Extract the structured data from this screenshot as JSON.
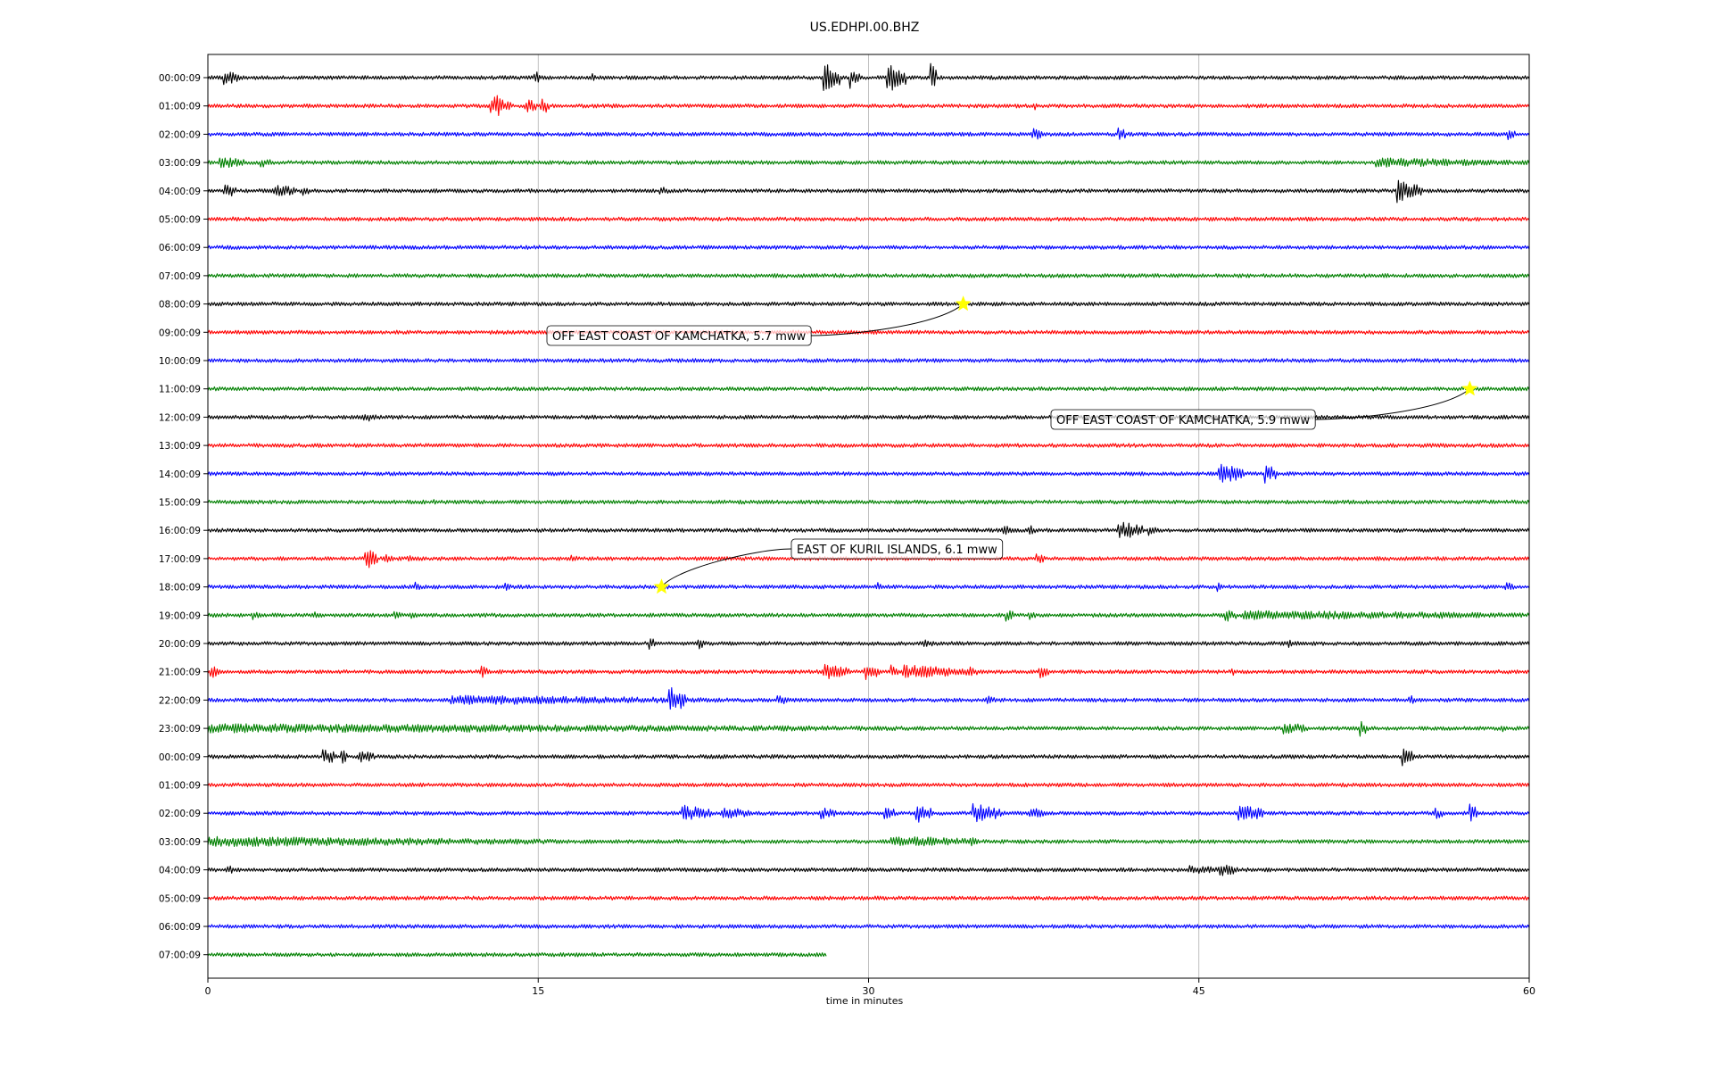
{
  "chart_data": {
    "type": "line",
    "title": "US.EDHPI.00.BHZ",
    "xlabel": "time in minutes",
    "ylabel": "",
    "xlim": [
      0,
      60
    ],
    "x_ticks": [
      "0",
      "15",
      "30",
      "45",
      "60"
    ],
    "x_tick_values": [
      0,
      15,
      30,
      45,
      60
    ],
    "grid": "vertical at major x ticks",
    "trace_colors": [
      "#000000",
      "#ff0000",
      "#0000ff",
      "#008000"
    ],
    "rows": [
      {
        "label": "00:00:09",
        "end": 60,
        "bursts": [
          [
            0.7,
            2,
            0.8
          ],
          [
            14.8,
            2,
            0.3
          ],
          [
            17.4,
            1.2,
            0.2
          ],
          [
            27.9,
            4,
            0.8
          ],
          [
            29.1,
            3,
            0.5
          ],
          [
            30.8,
            4,
            0.9
          ],
          [
            32.8,
            4,
            0.3
          ]
        ]
      },
      {
        "label": "01:00:09",
        "end": 60,
        "bursts": [
          [
            12.8,
            2,
            1.0
          ],
          [
            13.0,
            3.5,
            0.4
          ],
          [
            14.4,
            2,
            0.6
          ],
          [
            15.1,
            2.5,
            0.4
          ],
          [
            37.5,
            1.2,
            0.2
          ]
        ]
      },
      {
        "label": "02:00:09",
        "end": 60,
        "bursts": [
          [
            37.4,
            1.8,
            0.5
          ],
          [
            41.3,
            2,
            0.4
          ],
          [
            59.0,
            1.5,
            0.4
          ]
        ]
      },
      {
        "label": "03:00:09",
        "end": 60,
        "bursts": [
          [
            0.5,
            1.6,
            1.2
          ],
          [
            2.4,
            1.4,
            0.5
          ],
          [
            53.0,
            1.2,
            7.0
          ]
        ]
      },
      {
        "label": "04:00:09",
        "end": 60,
        "bursts": [
          [
            0.7,
            2,
            0.6
          ],
          [
            3.0,
            1.8,
            1.0
          ],
          [
            4.3,
            1.3,
            0.4
          ],
          [
            20.5,
            1.3,
            0.4
          ],
          [
            54.0,
            3,
            1.2
          ]
        ]
      },
      {
        "label": "05:00:09",
        "end": 60,
        "bursts": [
          [
            1.1,
            1.1,
            0.2
          ]
        ]
      },
      {
        "label": "06:00:09",
        "end": 60,
        "bursts": []
      },
      {
        "label": "07:00:09",
        "end": 60,
        "bursts": []
      },
      {
        "label": "08:00:09",
        "end": 60,
        "bursts": []
      },
      {
        "label": "09:00:09",
        "end": 60,
        "bursts": []
      },
      {
        "label": "10:00:09",
        "end": 60,
        "bursts": []
      },
      {
        "label": "11:00:09",
        "end": 60,
        "bursts": []
      },
      {
        "label": "12:00:09",
        "end": 60,
        "bursts": [
          [
            6.9,
            1.3,
            1.0
          ]
        ]
      },
      {
        "label": "13:00:09",
        "end": 60,
        "bursts": []
      },
      {
        "label": "14:00:09",
        "end": 60,
        "bursts": [
          [
            45.9,
            2.6,
            1.2
          ],
          [
            48.0,
            2.4,
            0.6
          ]
        ]
      },
      {
        "label": "15:00:09",
        "end": 60,
        "bursts": [
          [
            10.2,
            1.1,
            0.2
          ]
        ]
      },
      {
        "label": "16:00:09",
        "end": 60,
        "bursts": [
          [
            36.0,
            1.5,
            0.5
          ],
          [
            37.2,
            1.6,
            0.4
          ],
          [
            41.3,
            2.4,
            1.2
          ],
          [
            42.7,
            1.5,
            0.4
          ]
        ]
      },
      {
        "label": "17:00:09",
        "end": 60,
        "bursts": [
          [
            7.1,
            3,
            0.6
          ],
          [
            8.0,
            1.5,
            0.4
          ],
          [
            9.0,
            1.5,
            0.3
          ],
          [
            16.5,
            1.5,
            0.3
          ],
          [
            37.6,
            1.6,
            0.4
          ]
        ]
      },
      {
        "label": "18:00:09",
        "end": 60,
        "bursts": [
          [
            9.4,
            1.5,
            0.2
          ],
          [
            13.5,
            1.5,
            0.3
          ],
          [
            30.3,
            1.4,
            0.3
          ],
          [
            45.8,
            1.5,
            0.3
          ],
          [
            58.9,
            1.6,
            0.4
          ]
        ]
      },
      {
        "label": "19:00:09",
        "end": 60,
        "bursts": [
          [
            2.0,
            1.6,
            0.3
          ],
          [
            4.8,
            1.5,
            0.3
          ],
          [
            8.4,
            1.5,
            0.5
          ],
          [
            9.2,
            1.3,
            0.3
          ],
          [
            36.2,
            1.6,
            0.5
          ],
          [
            37.2,
            1.6,
            0.4
          ],
          [
            46.2,
            1.9,
            0.5
          ],
          [
            47.0,
            1.2,
            13.0
          ],
          [
            56.0,
            1.3,
            0.5
          ]
        ]
      },
      {
        "label": "20:00:09",
        "end": 60,
        "bursts": [
          [
            20.0,
            1.6,
            0.4
          ],
          [
            22.2,
            1.6,
            0.4
          ],
          [
            32.4,
            1.4,
            0.6
          ],
          [
            49.0,
            1.4,
            0.3
          ]
        ]
      },
      {
        "label": "21:00:09",
        "end": 60,
        "bursts": [
          [
            0.1,
            1.8,
            0.4
          ],
          [
            12.4,
            1.6,
            0.4
          ],
          [
            27.9,
            2.2,
            1.2
          ],
          [
            29.8,
            2.2,
            0.7
          ],
          [
            31.0,
            1.8,
            0.4
          ],
          [
            31.5,
            1.8,
            3.5
          ],
          [
            34.6,
            1.3,
            0.3
          ],
          [
            37.7,
            2.2,
            0.5
          ],
          [
            46.5,
            1.2,
            0.2
          ]
        ]
      },
      {
        "label": "22:00:09",
        "end": 60,
        "bursts": [
          [
            11.0,
            1.2,
            13.0
          ],
          [
            20.9,
            3.6,
            0.8
          ],
          [
            25.8,
            1.4,
            0.6
          ],
          [
            35.3,
            1.5,
            0.4
          ],
          [
            54.5,
            1.5,
            0.4
          ]
        ]
      },
      {
        "label": "23:00:09",
        "end": 60,
        "bursts": [
          [
            0,
            1.2,
            32.0
          ],
          [
            48.8,
            1.6,
            1.2
          ],
          [
            52.3,
            2.2,
            0.4
          ],
          [
            58.7,
            1.2,
            0.2
          ]
        ]
      },
      {
        "label": "00:00:09",
        "end": 60,
        "bursts": [
          [
            5.2,
            2.4,
            0.6
          ],
          [
            6.0,
            2.6,
            0.3
          ],
          [
            6.8,
            1.8,
            0.8
          ],
          [
            54.2,
            2.4,
            0.6
          ]
        ]
      },
      {
        "label": "01:00:09",
        "end": 60,
        "bursts": []
      },
      {
        "label": "02:00:09",
        "end": 60,
        "bursts": [
          [
            21.5,
            2.2,
            1.3
          ],
          [
            23.3,
            1.8,
            1.3
          ],
          [
            27.8,
            1.6,
            0.8
          ],
          [
            30.7,
            2.2,
            0.5
          ],
          [
            32.1,
            2.6,
            0.8
          ],
          [
            34.7,
            2.6,
            1.3
          ],
          [
            37.3,
            1.7,
            0.8
          ],
          [
            46.8,
            2.3,
            1.2
          ],
          [
            55.7,
            1.6,
            0.4
          ],
          [
            57.3,
            2.6,
            0.4
          ]
        ]
      },
      {
        "label": "03:00:09",
        "end": 60,
        "bursts": [
          [
            0,
            1.3,
            16.0
          ],
          [
            31.0,
            1.5,
            4.0
          ],
          [
            34.6,
            1.3,
            0.4
          ]
        ]
      },
      {
        "label": "04:00:09",
        "end": 60,
        "bursts": [
          [
            0.8,
            1.4,
            0.4
          ],
          [
            44.5,
            1.3,
            1.4
          ],
          [
            45.9,
            1.8,
            0.9
          ]
        ]
      },
      {
        "label": "05:00:09",
        "end": 60,
        "bursts": []
      },
      {
        "label": "06:00:09",
        "end": 60,
        "bursts": []
      },
      {
        "label": "07:00:09",
        "end": 28.1,
        "bursts": []
      }
    ],
    "events": [
      {
        "label": "OFF EAST COAST OF KAMCHATKA, 5.7 mww",
        "row": 8,
        "minute": 34.3,
        "marker": "star"
      },
      {
        "label": "OFF EAST COAST OF KAMCHATKA, 5.9 mww",
        "row": 11,
        "minute": 57.3,
        "marker": "star"
      },
      {
        "label": "EAST OF KURIL ISLANDS, 6.1 mww",
        "row": 18,
        "minute": 20.6,
        "marker": "star"
      }
    ],
    "marker_color": "#ffff00"
  }
}
